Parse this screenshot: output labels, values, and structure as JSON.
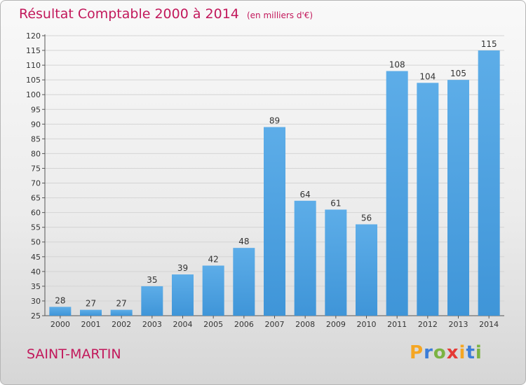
{
  "title": "Résultat Comptable 2000 à 2014",
  "unit": "(en milliers d'€)",
  "commune": "SAINT-MARTIN",
  "brand": {
    "letters": [
      "P",
      "r",
      "o",
      "x",
      "i",
      "t",
      "i"
    ],
    "colors": [
      "#f5a623",
      "#3b7dd8",
      "#7cb342",
      "#e53935",
      "#f5a623",
      "#3b7dd8",
      "#7cb342"
    ]
  },
  "colors": {
    "bar": "#3f95d8",
    "bar_light": "#5dade8",
    "title": "#c2185b"
  },
  "chart_data": {
    "type": "bar",
    "title": "Résultat Comptable 2000 à 2014",
    "categories": [
      "2000",
      "2001",
      "2002",
      "2003",
      "2004",
      "2005",
      "2006",
      "2007",
      "2008",
      "2009",
      "2010",
      "2011",
      "2012",
      "2013",
      "2014"
    ],
    "values": [
      28,
      27,
      27,
      35,
      39,
      42,
      48,
      89,
      64,
      61,
      56,
      108,
      104,
      105,
      115
    ],
    "ylim": [
      25,
      120
    ],
    "yticks": [
      25,
      30,
      35,
      40,
      45,
      50,
      55,
      60,
      65,
      70,
      75,
      80,
      85,
      90,
      95,
      100,
      105,
      110,
      115,
      120
    ],
    "grid": true,
    "legend": "none"
  }
}
